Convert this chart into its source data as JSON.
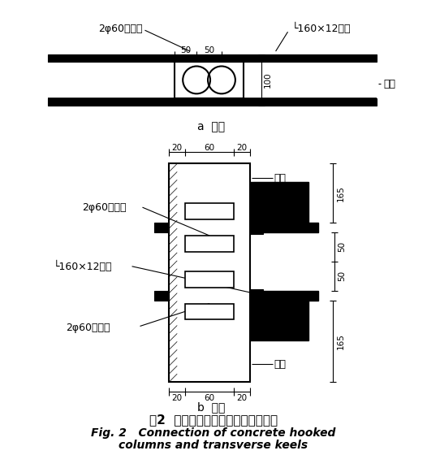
{
  "bg_color": "#ffffff",
  "lc": "black",
  "title_cn": "图2  混凝土挂柱和角钢横向龙骨连接",
  "title_en1": "Fig. 2   Connection of concrete hooked",
  "title_en2": "columns and transverse keels",
  "label_2phi60_1": "2φ60镀锥管",
  "label_L160": "└160×12龙骨",
  "label_guazhu1": "挂柱",
  "label_a": "a  平面",
  "label_guazhu2": "挂柱",
  "label_2phi60_2": "2φ60镀锥管",
  "label_L160_2": "└160×12龙骨",
  "label_2phi60_3": "2φ60镀锥管",
  "label_guazhu3": "挂柱",
  "label_b": "b  剑面"
}
